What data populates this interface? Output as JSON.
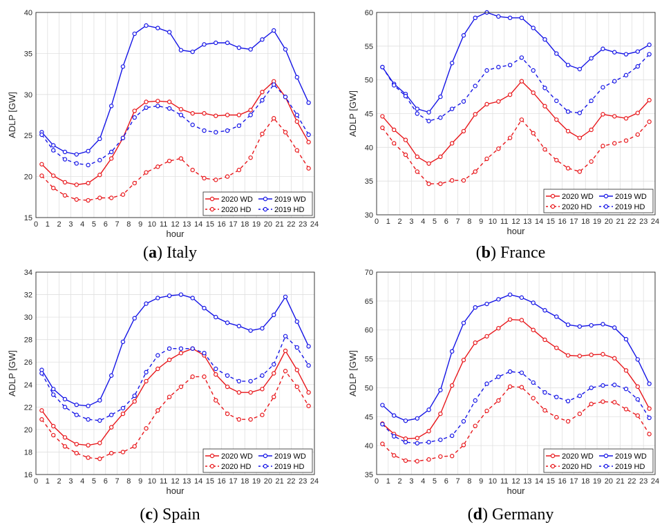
{
  "legend": {
    "wd2020": "2020 WD",
    "wd2019": "2019 WD",
    "hd2020": "2020 HD",
    "hd2019": "2019 HD"
  },
  "colors": {
    "c2020": "#e8161a",
    "c2019": "#1414e6"
  },
  "chart_data": [
    {
      "type": "line",
      "caption_letter": "a",
      "caption_name": "Italy",
      "xlabel": "hour",
      "ylabel": "ADLP [GW]",
      "xlim": [
        0,
        24
      ],
      "ylim": [
        15,
        40
      ],
      "yticks": [
        15,
        20,
        25,
        30,
        35,
        40
      ],
      "x": [
        0.5,
        1.5,
        2.5,
        3.5,
        4.5,
        5.5,
        6.5,
        7.5,
        8.5,
        9.5,
        10.5,
        11.5,
        12.5,
        13.5,
        14.5,
        15.5,
        16.5,
        17.5,
        18.5,
        19.5,
        20.5,
        21.5,
        22.5,
        23.5
      ],
      "series": [
        {
          "name": "2020 WD",
          "values": [
            21.5,
            20.1,
            19.3,
            19.0,
            19.2,
            20.2,
            22.2,
            24.7,
            28.0,
            29.1,
            29.2,
            29.1,
            28.2,
            27.7,
            27.7,
            27.4,
            27.5,
            27.5,
            28.1,
            30.3,
            31.6,
            29.7,
            26.7,
            24.2
          ]
        },
        {
          "name": "2019 WD",
          "values": [
            25.4,
            23.8,
            23.0,
            22.7,
            23.1,
            24.6,
            28.6,
            33.4,
            37.4,
            38.4,
            38.1,
            37.6,
            35.4,
            35.2,
            36.1,
            36.3,
            36.3,
            35.7,
            35.5,
            36.7,
            37.8,
            35.5,
            32.1,
            29.0
          ]
        },
        {
          "name": "2020 HD",
          "values": [
            20.1,
            18.6,
            17.7,
            17.2,
            17.1,
            17.4,
            17.4,
            17.8,
            19.2,
            20.5,
            21.2,
            21.9,
            22.2,
            20.8,
            19.8,
            19.6,
            20.0,
            20.8,
            22.3,
            25.2,
            27.1,
            25.4,
            23.2,
            21.0
          ]
        },
        {
          "name": "2019 HD",
          "values": [
            25.1,
            23.2,
            22.1,
            21.6,
            21.4,
            22.0,
            23.0,
            24.7,
            27.2,
            28.4,
            28.6,
            28.3,
            27.5,
            26.3,
            25.6,
            25.4,
            25.6,
            26.2,
            27.5,
            29.3,
            31.2,
            29.7,
            27.5,
            25.1
          ]
        }
      ]
    },
    {
      "type": "line",
      "caption_letter": "b",
      "caption_name": "France",
      "xlabel": "hour",
      "ylabel": "ADLP [GW]",
      "xlim": [
        0,
        24
      ],
      "ylim": [
        30,
        60
      ],
      "yticks": [
        30,
        35,
        40,
        45,
        50,
        55,
        60
      ],
      "x": [
        0.5,
        1.5,
        2.5,
        3.5,
        4.5,
        5.5,
        6.5,
        7.5,
        8.5,
        9.5,
        10.5,
        11.5,
        12.5,
        13.5,
        14.5,
        15.5,
        16.5,
        17.5,
        18.5,
        19.5,
        20.5,
        21.5,
        22.5,
        23.5
      ],
      "series": [
        {
          "name": "2020 WD",
          "values": [
            44.6,
            42.6,
            41.1,
            38.6,
            37.6,
            38.6,
            40.6,
            42.4,
            44.9,
            46.4,
            46.8,
            47.8,
            49.8,
            48.1,
            46.1,
            44.1,
            42.4,
            41.4,
            42.6,
            44.9,
            44.6,
            44.3,
            45.1,
            47.0
          ]
        },
        {
          "name": "2019 WD",
          "values": [
            51.9,
            49.4,
            47.9,
            45.7,
            45.2,
            47.5,
            52.5,
            56.6,
            59.2,
            60.0,
            59.4,
            59.2,
            59.2,
            57.7,
            56.0,
            53.9,
            52.2,
            51.6,
            53.2,
            54.6,
            54.1,
            53.8,
            54.2,
            55.2
          ]
        },
        {
          "name": "2020 HD",
          "values": [
            42.9,
            40.6,
            38.9,
            36.4,
            34.6,
            34.6,
            35.1,
            35.1,
            36.4,
            38.3,
            39.8,
            41.4,
            44.1,
            42.1,
            39.7,
            38.1,
            36.9,
            36.4,
            37.9,
            40.2,
            40.6,
            41.0,
            41.9,
            43.8
          ]
        },
        {
          "name": "2019 HD",
          "values": [
            51.9,
            49.2,
            47.6,
            45.0,
            43.9,
            44.4,
            45.7,
            46.8,
            49.1,
            51.4,
            51.9,
            52.2,
            53.3,
            51.4,
            48.8,
            46.9,
            45.3,
            45.1,
            46.9,
            48.9,
            49.8,
            50.7,
            52.0,
            53.8
          ]
        }
      ]
    },
    {
      "type": "line",
      "caption_letter": "c",
      "caption_name": "Spain",
      "xlabel": "hour",
      "ylabel": "ADLP [GW]",
      "xlim": [
        0,
        24
      ],
      "ylim": [
        16,
        34
      ],
      "yticks": [
        16,
        18,
        20,
        22,
        24,
        26,
        28,
        30,
        32,
        34
      ],
      "x": [
        0.5,
        1.5,
        2.5,
        3.5,
        4.5,
        5.5,
        6.5,
        7.5,
        8.5,
        9.5,
        10.5,
        11.5,
        12.5,
        13.5,
        14.5,
        15.5,
        16.5,
        17.5,
        18.5,
        19.5,
        20.5,
        21.5,
        22.5,
        23.5
      ],
      "series": [
        {
          "name": "2020 WD",
          "values": [
            21.7,
            20.3,
            19.3,
            18.7,
            18.6,
            18.8,
            20.2,
            21.4,
            22.5,
            24.3,
            25.4,
            26.2,
            26.8,
            27.2,
            26.6,
            24.9,
            23.8,
            23.3,
            23.3,
            23.6,
            25.0,
            27.0,
            25.3,
            23.3
          ]
        },
        {
          "name": "2019 WD",
          "values": [
            25.3,
            23.6,
            22.7,
            22.2,
            22.1,
            22.6,
            24.8,
            27.8,
            29.9,
            31.2,
            31.7,
            31.9,
            32.0,
            31.7,
            30.8,
            30.0,
            29.5,
            29.2,
            28.8,
            29.0,
            30.2,
            31.8,
            29.6,
            27.4
          ]
        },
        {
          "name": "2020 HD",
          "values": [
            20.9,
            19.5,
            18.5,
            17.9,
            17.5,
            17.4,
            17.9,
            18.0,
            18.5,
            20.1,
            21.7,
            22.9,
            23.8,
            24.7,
            24.7,
            22.6,
            21.4,
            20.9,
            20.9,
            21.3,
            22.9,
            25.2,
            23.8,
            22.1
          ]
        },
        {
          "name": "2019 HD",
          "values": [
            25.0,
            23.1,
            22.0,
            21.3,
            20.9,
            20.8,
            21.3,
            21.9,
            23.0,
            25.1,
            26.6,
            27.2,
            27.2,
            27.2,
            26.8,
            25.4,
            24.8,
            24.3,
            24.3,
            24.8,
            25.8,
            28.3,
            27.3,
            25.7
          ]
        }
      ]
    },
    {
      "type": "line",
      "caption_letter": "d",
      "caption_name": "Germany",
      "xlabel": "hour",
      "ylabel": "ADLP [GW]",
      "xlim": [
        0,
        24
      ],
      "ylim": [
        35,
        70
      ],
      "yticks": [
        35,
        40,
        45,
        50,
        55,
        60,
        65,
        70
      ],
      "x": [
        0.5,
        1.5,
        2.5,
        3.5,
        4.5,
        5.5,
        6.5,
        7.5,
        8.5,
        9.5,
        10.5,
        11.5,
        12.5,
        13.5,
        14.5,
        15.5,
        16.5,
        17.5,
        18.5,
        19.5,
        20.5,
        21.5,
        22.5,
        23.5
      ],
      "series": [
        {
          "name": "2020 WD",
          "values": [
            43.8,
            42.0,
            41.2,
            41.3,
            42.5,
            45.5,
            50.4,
            54.8,
            57.8,
            58.9,
            60.3,
            61.8,
            61.7,
            60.0,
            58.3,
            56.9,
            55.6,
            55.5,
            55.7,
            55.8,
            55.1,
            53.0,
            50.2,
            46.4
          ]
        },
        {
          "name": "2019 WD",
          "values": [
            47.0,
            45.2,
            44.3,
            44.7,
            46.2,
            49.6,
            56.3,
            61.2,
            63.9,
            64.5,
            65.3,
            66.1,
            65.6,
            64.7,
            63.4,
            62.3,
            60.9,
            60.6,
            60.8,
            61.0,
            60.4,
            58.4,
            54.9,
            50.7
          ]
        },
        {
          "name": "2020 HD",
          "values": [
            40.3,
            38.3,
            37.4,
            37.3,
            37.6,
            38.1,
            38.2,
            40.1,
            43.4,
            46.0,
            47.8,
            50.2,
            50.1,
            48.2,
            46.1,
            44.9,
            44.2,
            45.5,
            47.2,
            47.6,
            47.5,
            46.3,
            45.2,
            42.0
          ]
        },
        {
          "name": "2019 HD",
          "values": [
            43.7,
            41.6,
            40.6,
            40.4,
            40.6,
            41.0,
            41.7,
            44.2,
            47.8,
            50.7,
            51.9,
            52.8,
            52.6,
            50.9,
            49.2,
            48.4,
            47.7,
            48.6,
            50.0,
            50.4,
            50.5,
            49.8,
            48.0,
            44.8
          ]
        }
      ]
    }
  ]
}
